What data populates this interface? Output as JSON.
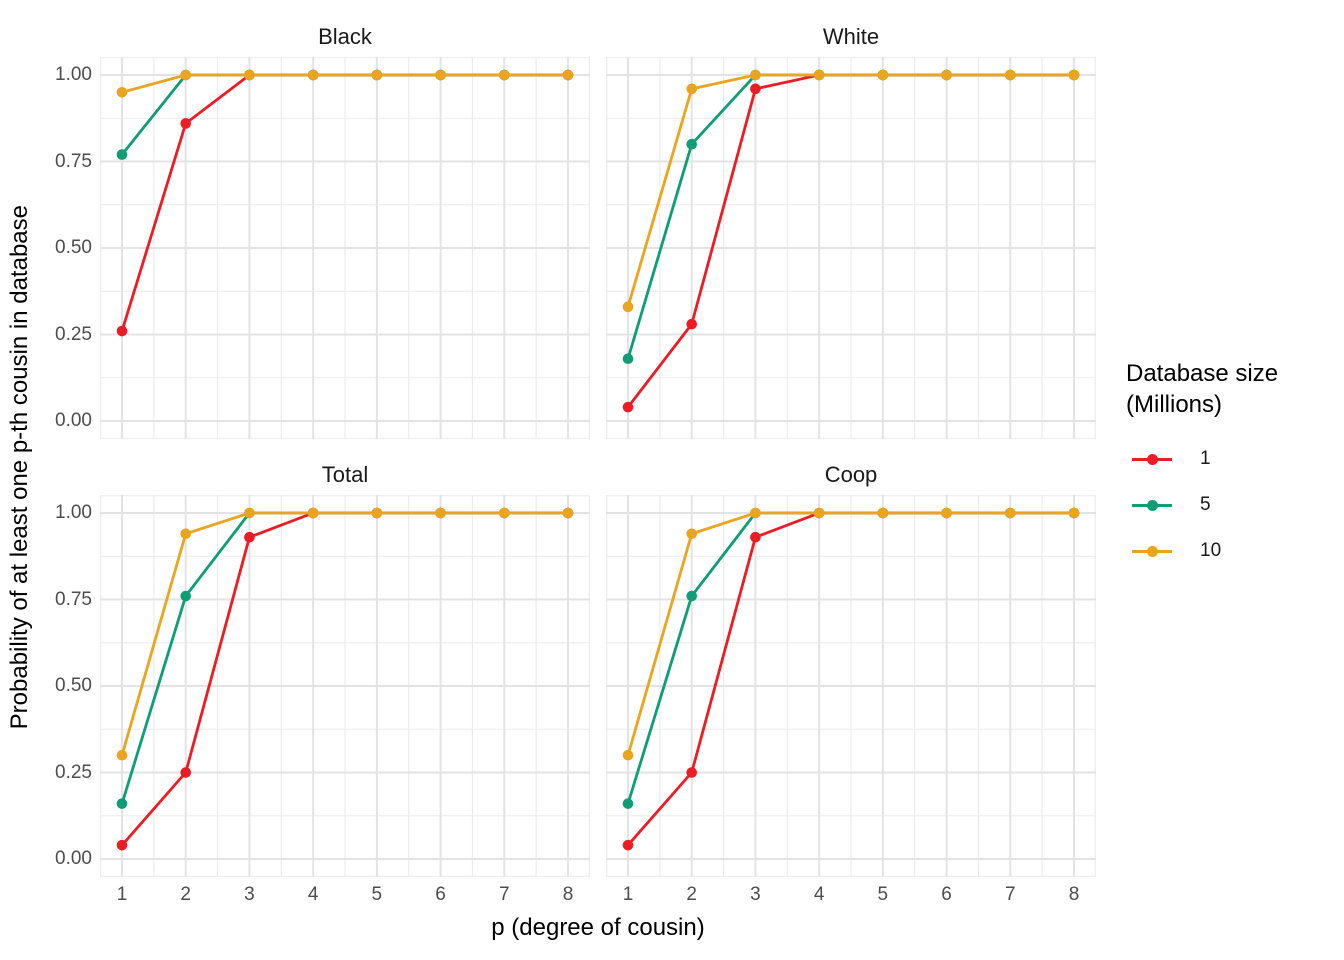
{
  "chart_data": {
    "type": "line",
    "xlabel": "p (degree of cousin)",
    "ylabel": "Probability of at least one p-th cousin in database",
    "legend_title": "Database size (Millions)",
    "legend_title_lines": [
      "Database size",
      "(Millions)"
    ],
    "legend_position": "right",
    "x": [
      1,
      2,
      3,
      4,
      5,
      6,
      7,
      8
    ],
    "x_ticks": [
      "1",
      "2",
      "3",
      "4",
      "5",
      "6",
      "7",
      "8"
    ],
    "y_ticks": [
      "0.00",
      "0.25",
      "0.50",
      "0.75",
      "1.00"
    ],
    "ylim": [
      0,
      1
    ],
    "grid": "major+minor",
    "grid_color_major": "#E3E3E3",
    "grid_color_minor": "#EBEBEB",
    "tick_label_color": "#4D4D4D",
    "series_meta": [
      {
        "name": "1",
        "color": "#ED1C24"
      },
      {
        "name": "5",
        "color": "#0F9D76"
      },
      {
        "name": "10",
        "color": "#EBA41F"
      }
    ],
    "facets": [
      {
        "title": "Black",
        "series": [
          {
            "name": "1",
            "values": [
              0.26,
              0.86,
              1.0,
              1.0,
              1.0,
              1.0,
              1.0,
              1.0
            ]
          },
          {
            "name": "5",
            "values": [
              0.77,
              1.0,
              1.0,
              1.0,
              1.0,
              1.0,
              1.0,
              1.0
            ]
          },
          {
            "name": "10",
            "values": [
              0.95,
              1.0,
              1.0,
              1.0,
              1.0,
              1.0,
              1.0,
              1.0
            ]
          }
        ]
      },
      {
        "title": "White",
        "series": [
          {
            "name": "1",
            "values": [
              0.04,
              0.28,
              0.96,
              1.0,
              1.0,
              1.0,
              1.0,
              1.0
            ]
          },
          {
            "name": "5",
            "values": [
              0.18,
              0.8,
              1.0,
              1.0,
              1.0,
              1.0,
              1.0,
              1.0
            ]
          },
          {
            "name": "10",
            "values": [
              0.33,
              0.96,
              1.0,
              1.0,
              1.0,
              1.0,
              1.0,
              1.0
            ]
          }
        ]
      },
      {
        "title": "Total",
        "series": [
          {
            "name": "1",
            "values": [
              0.04,
              0.25,
              0.93,
              1.0,
              1.0,
              1.0,
              1.0,
              1.0
            ]
          },
          {
            "name": "5",
            "values": [
              0.16,
              0.76,
              1.0,
              1.0,
              1.0,
              1.0,
              1.0,
              1.0
            ]
          },
          {
            "name": "10",
            "values": [
              0.3,
              0.94,
              1.0,
              1.0,
              1.0,
              1.0,
              1.0,
              1.0
            ]
          }
        ]
      },
      {
        "title": "Coop",
        "series": [
          {
            "name": "1",
            "values": [
              0.04,
              0.25,
              0.93,
              1.0,
              1.0,
              1.0,
              1.0,
              1.0
            ]
          },
          {
            "name": "5",
            "values": [
              0.16,
              0.76,
              1.0,
              1.0,
              1.0,
              1.0,
              1.0,
              1.0
            ]
          },
          {
            "name": "10",
            "values": [
              0.3,
              0.94,
              1.0,
              1.0,
              1.0,
              1.0,
              1.0,
              1.0
            ]
          }
        ]
      }
    ]
  }
}
